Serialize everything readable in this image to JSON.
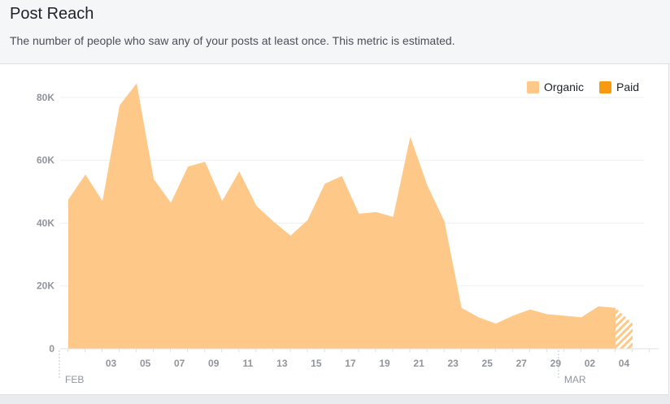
{
  "header": {
    "title": "Post Reach",
    "subtitle": "The number of people who saw any of your posts at least once. This metric is estimated."
  },
  "colors": {
    "organic": "#fec888",
    "paid": "#f89a10",
    "grid": "#eeeff1",
    "axis_text": "#90949c"
  },
  "chart_data": {
    "type": "area",
    "title": "",
    "xlabel": "",
    "ylabel": "",
    "ylim": [
      0,
      88000
    ],
    "y_ticks": [
      0,
      20000,
      40000,
      60000,
      80000
    ],
    "y_tick_labels": [
      "0",
      "20K",
      "40K",
      "60K",
      "80K"
    ],
    "x": [
      "Feb 01",
      "Feb 02",
      "Feb 03",
      "Feb 04",
      "Feb 05",
      "Feb 06",
      "Feb 07",
      "Feb 08",
      "Feb 09",
      "Feb 10",
      "Feb 11",
      "Feb 12",
      "Feb 13",
      "Feb 14",
      "Feb 15",
      "Feb 16",
      "Feb 17",
      "Feb 18",
      "Feb 19",
      "Feb 20",
      "Feb 21",
      "Feb 22",
      "Feb 23",
      "Feb 24",
      "Feb 25",
      "Feb 26",
      "Feb 27",
      "Feb 28",
      "Feb 29",
      "Mar 01",
      "Mar 02",
      "Mar 03",
      "Mar 04",
      "Mar 05"
    ],
    "x_tick_labels": [
      "03",
      "05",
      "07",
      "09",
      "11",
      "13",
      "15",
      "17",
      "19",
      "21",
      "23",
      "25",
      "27",
      "29",
      "02",
      "04"
    ],
    "month_labels": [
      "FEB",
      "MAR"
    ],
    "grid": true,
    "legend_position": "top-right",
    "series": [
      {
        "name": "Organic",
        "values": [
          47500,
          55500,
          47000,
          77500,
          84500,
          54000,
          46500,
          58000,
          59500,
          47000,
          56500,
          45500,
          40500,
          36000,
          41000,
          52500,
          55000,
          43000,
          43500,
          42000,
          67500,
          52000,
          40500,
          13000,
          10000,
          8000,
          10500,
          12500,
          11000,
          10500,
          10000,
          13500,
          13000,
          8000
        ],
        "last_point_estimated": true
      },
      {
        "name": "Paid",
        "values": [
          0,
          0,
          0,
          0,
          0,
          0,
          0,
          0,
          0,
          0,
          0,
          0,
          0,
          0,
          0,
          0,
          0,
          0,
          0,
          0,
          0,
          0,
          0,
          0,
          0,
          0,
          0,
          0,
          0,
          0,
          0,
          0,
          0,
          0
        ]
      }
    ]
  }
}
